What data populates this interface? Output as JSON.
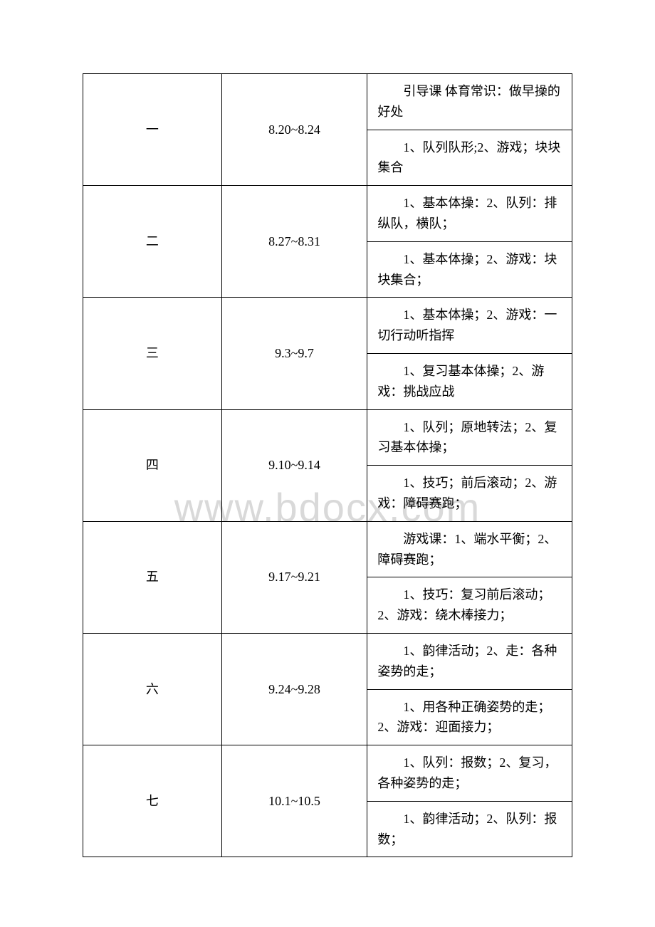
{
  "watermark": "www.bdocx.com",
  "table": {
    "rows": [
      {
        "week": "一",
        "date": "8.20~8.24",
        "contents": [
          "引导课 体育常识：做早操的好处",
          "1、队列队形;2、游戏；块块集合"
        ]
      },
      {
        "week": "二",
        "date": "8.27~8.31",
        "contents": [
          "1、基本体操：2、队列：排纵队，横队；",
          "1、基本体操；2、游戏：块块集合；"
        ]
      },
      {
        "week": "三",
        "date": "9.3~9.7",
        "contents": [
          "1、基本体操；2、游戏：一切行动听指挥",
          "1、复习基本体操；2、游戏：挑战应战"
        ]
      },
      {
        "week": "四",
        "date": "9.10~9.14",
        "contents": [
          "1、队列；原地转法；2、复习基本体操；",
          "1、技巧；前后滚动；2、游戏：障碍赛跑；"
        ]
      },
      {
        "week": "五",
        "date": "9.17~9.21",
        "contents": [
          "游戏课：1、端水平衡；2、障碍赛跑；",
          "1、技巧：复习前后滚动；2、游戏：绕木棒接力；"
        ]
      },
      {
        "week": "六",
        "date": "9.24~9.28",
        "contents": [
          "1、韵律活动；2、走：各种姿势的走；",
          "1、用各种正确姿势的走；2、游戏：迎面接力；"
        ]
      },
      {
        "week": "七",
        "date": "10.1~10.5",
        "contents": [
          "1、队列：报数；2、复习，各种姿势的走；",
          "1、韵律活动；2、队列：报数；"
        ]
      }
    ]
  }
}
